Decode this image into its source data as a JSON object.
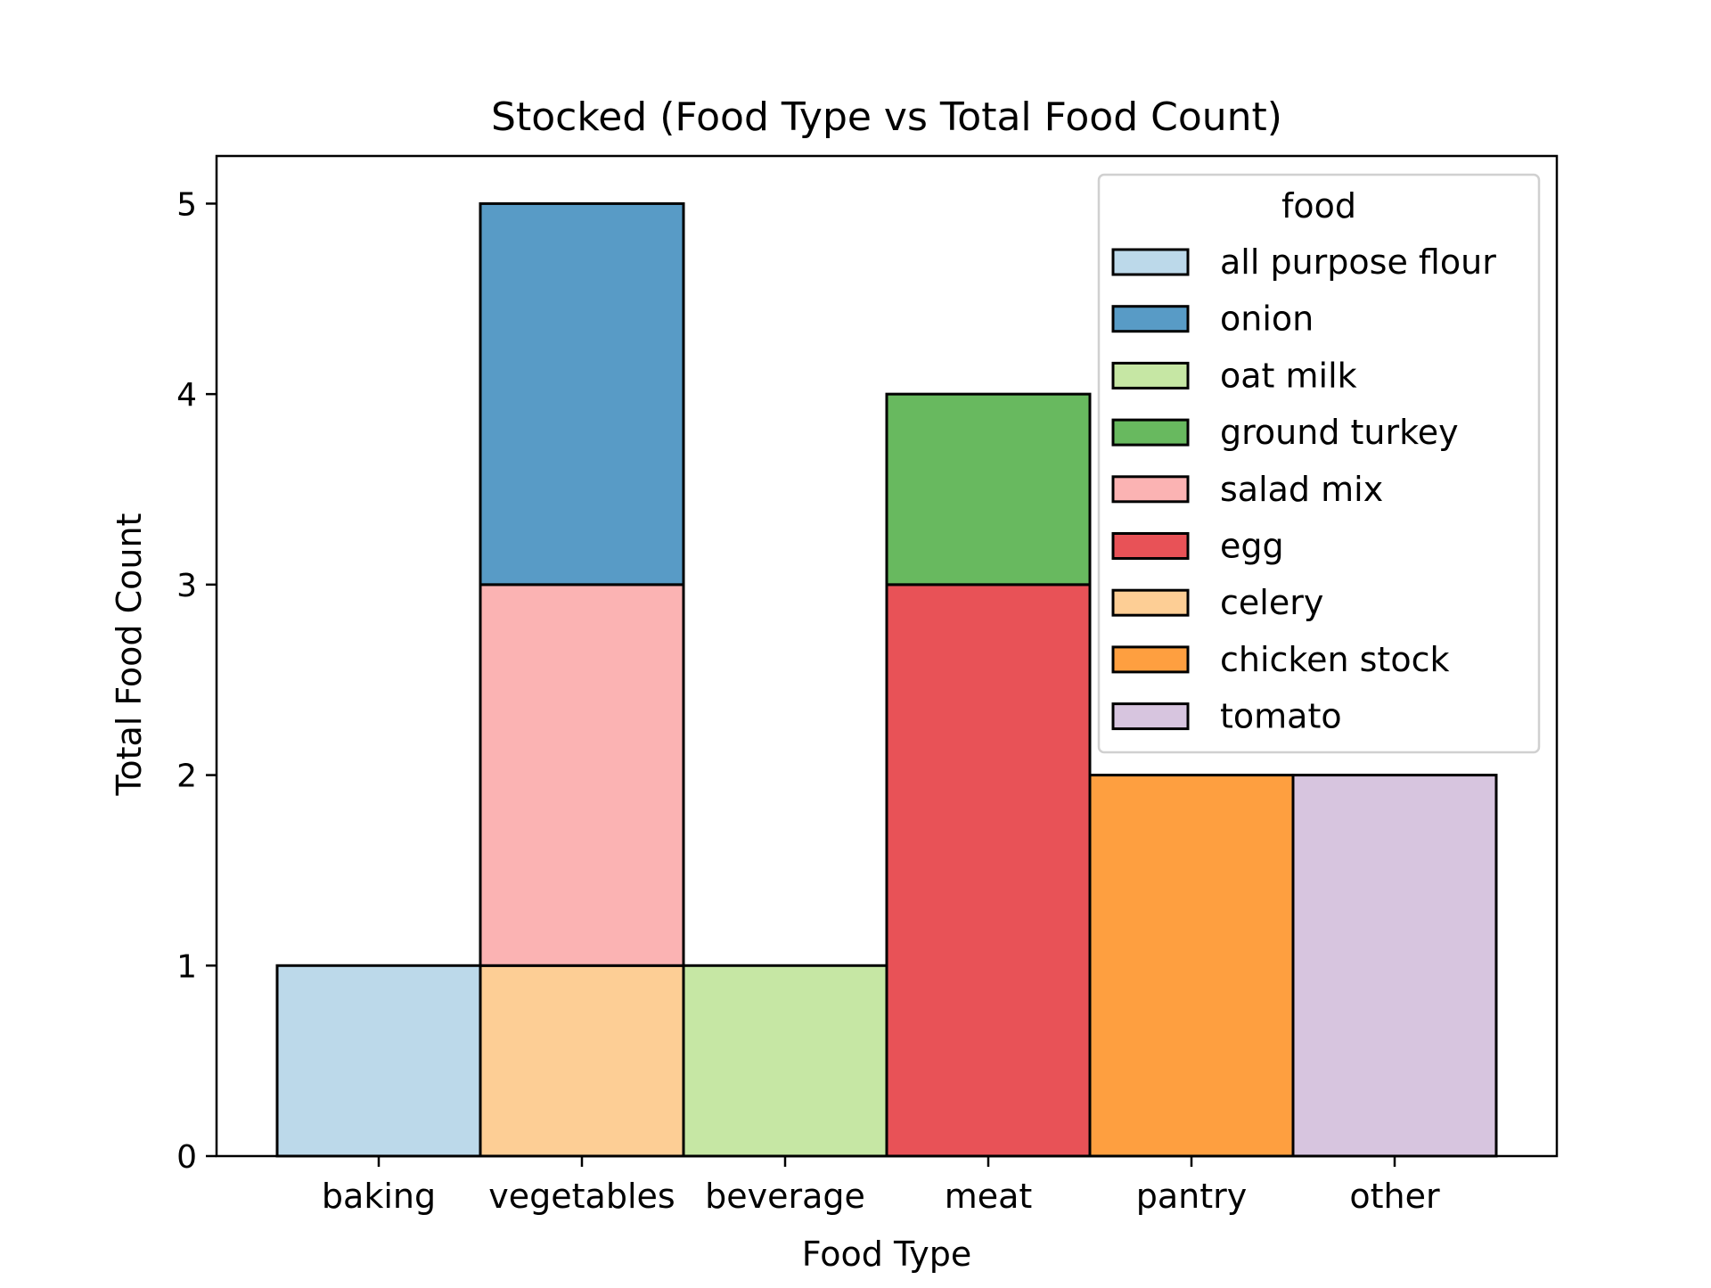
{
  "chart_data": {
    "type": "bar",
    "stacked": true,
    "title": "Stocked (Food Type vs Total Food Count)",
    "xlabel": "Food Type",
    "ylabel": "Total Food Count",
    "categories": [
      "baking",
      "vegetables",
      "beverage",
      "meat",
      "pantry",
      "other"
    ],
    "ylim": [
      0,
      5.25
    ],
    "yticks": [
      "0",
      "1",
      "2",
      "3",
      "4",
      "5"
    ],
    "grid": false,
    "legend": {
      "title": "food",
      "position": "top-right"
    },
    "series": [
      {
        "name": "all purpose flour",
        "color": "#bcd9ea",
        "values": [
          1,
          0,
          0,
          0,
          0,
          0
        ]
      },
      {
        "name": "onion",
        "color": "#589bc6",
        "values": [
          0,
          2,
          0,
          0,
          0,
          0
        ]
      },
      {
        "name": "oat milk",
        "color": "#c6e7a4",
        "values": [
          0,
          0,
          1,
          0,
          0,
          0
        ]
      },
      {
        "name": "ground turkey",
        "color": "#68b95f",
        "values": [
          0,
          0,
          0,
          1,
          0,
          0
        ]
      },
      {
        "name": "salad mix",
        "color": "#fbb3b3",
        "values": [
          0,
          2,
          0,
          0,
          0,
          0
        ]
      },
      {
        "name": "egg",
        "color": "#e85257",
        "values": [
          0,
          0,
          0,
          3,
          0,
          0
        ]
      },
      {
        "name": "celery",
        "color": "#fdce95",
        "values": [
          0,
          1,
          0,
          0,
          0,
          0
        ]
      },
      {
        "name": "chicken stock",
        "color": "#fe9f40",
        "values": [
          0,
          0,
          0,
          0,
          2,
          0
        ]
      },
      {
        "name": "tomato",
        "color": "#d7c5df",
        "values": [
          0,
          0,
          0,
          0,
          0,
          2
        ]
      }
    ],
    "stack_order": [
      "celery",
      "salad mix",
      "onion",
      "egg",
      "ground turkey"
    ]
  }
}
